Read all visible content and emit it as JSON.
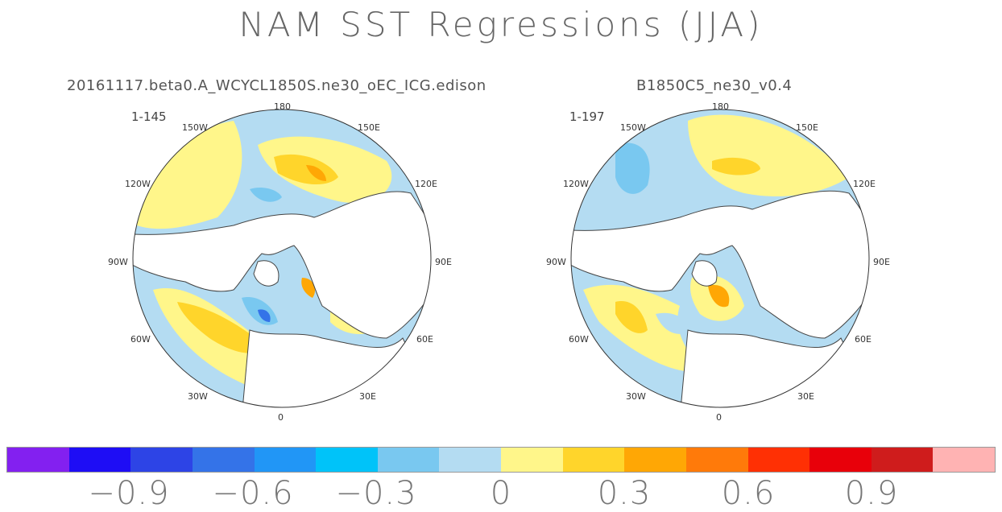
{
  "title": "NAM SST Regressions (JJA)",
  "panels": [
    {
      "subtitle": "20161117.beta0.A_WCYCL1850S.ne30_oEC_ICG.edison",
      "range": "1-145"
    },
    {
      "subtitle": "B1850C5_ne30_v0.4",
      "range": "1-197"
    }
  ],
  "lon_labels": {
    "n": "180",
    "nw": "150W",
    "ne": "150E",
    "wnw": "120W",
    "ene": "120E",
    "w": "90W",
    "e": "90E",
    "wsw": "60W",
    "ese": "60E",
    "sw": "30W",
    "se": "30E",
    "s": "0"
  },
  "colorbar": {
    "colors": [
      "#8320f0",
      "#1e0df5",
      "#2d44e6",
      "#3473e8",
      "#2196f6",
      "#00c3f9",
      "#79c8f0",
      "#b4dcf2",
      "#fff68a",
      "#ffd52b",
      "#ffa705",
      "#ff7a0a",
      "#ff3004",
      "#e8000a",
      "#cf1c1c",
      "#ffb3b3"
    ],
    "tick_labels": [
      "−0.9",
      "−0.6",
      "−0.3",
      "0",
      "0.3",
      "0.6",
      "0.9"
    ]
  }
}
